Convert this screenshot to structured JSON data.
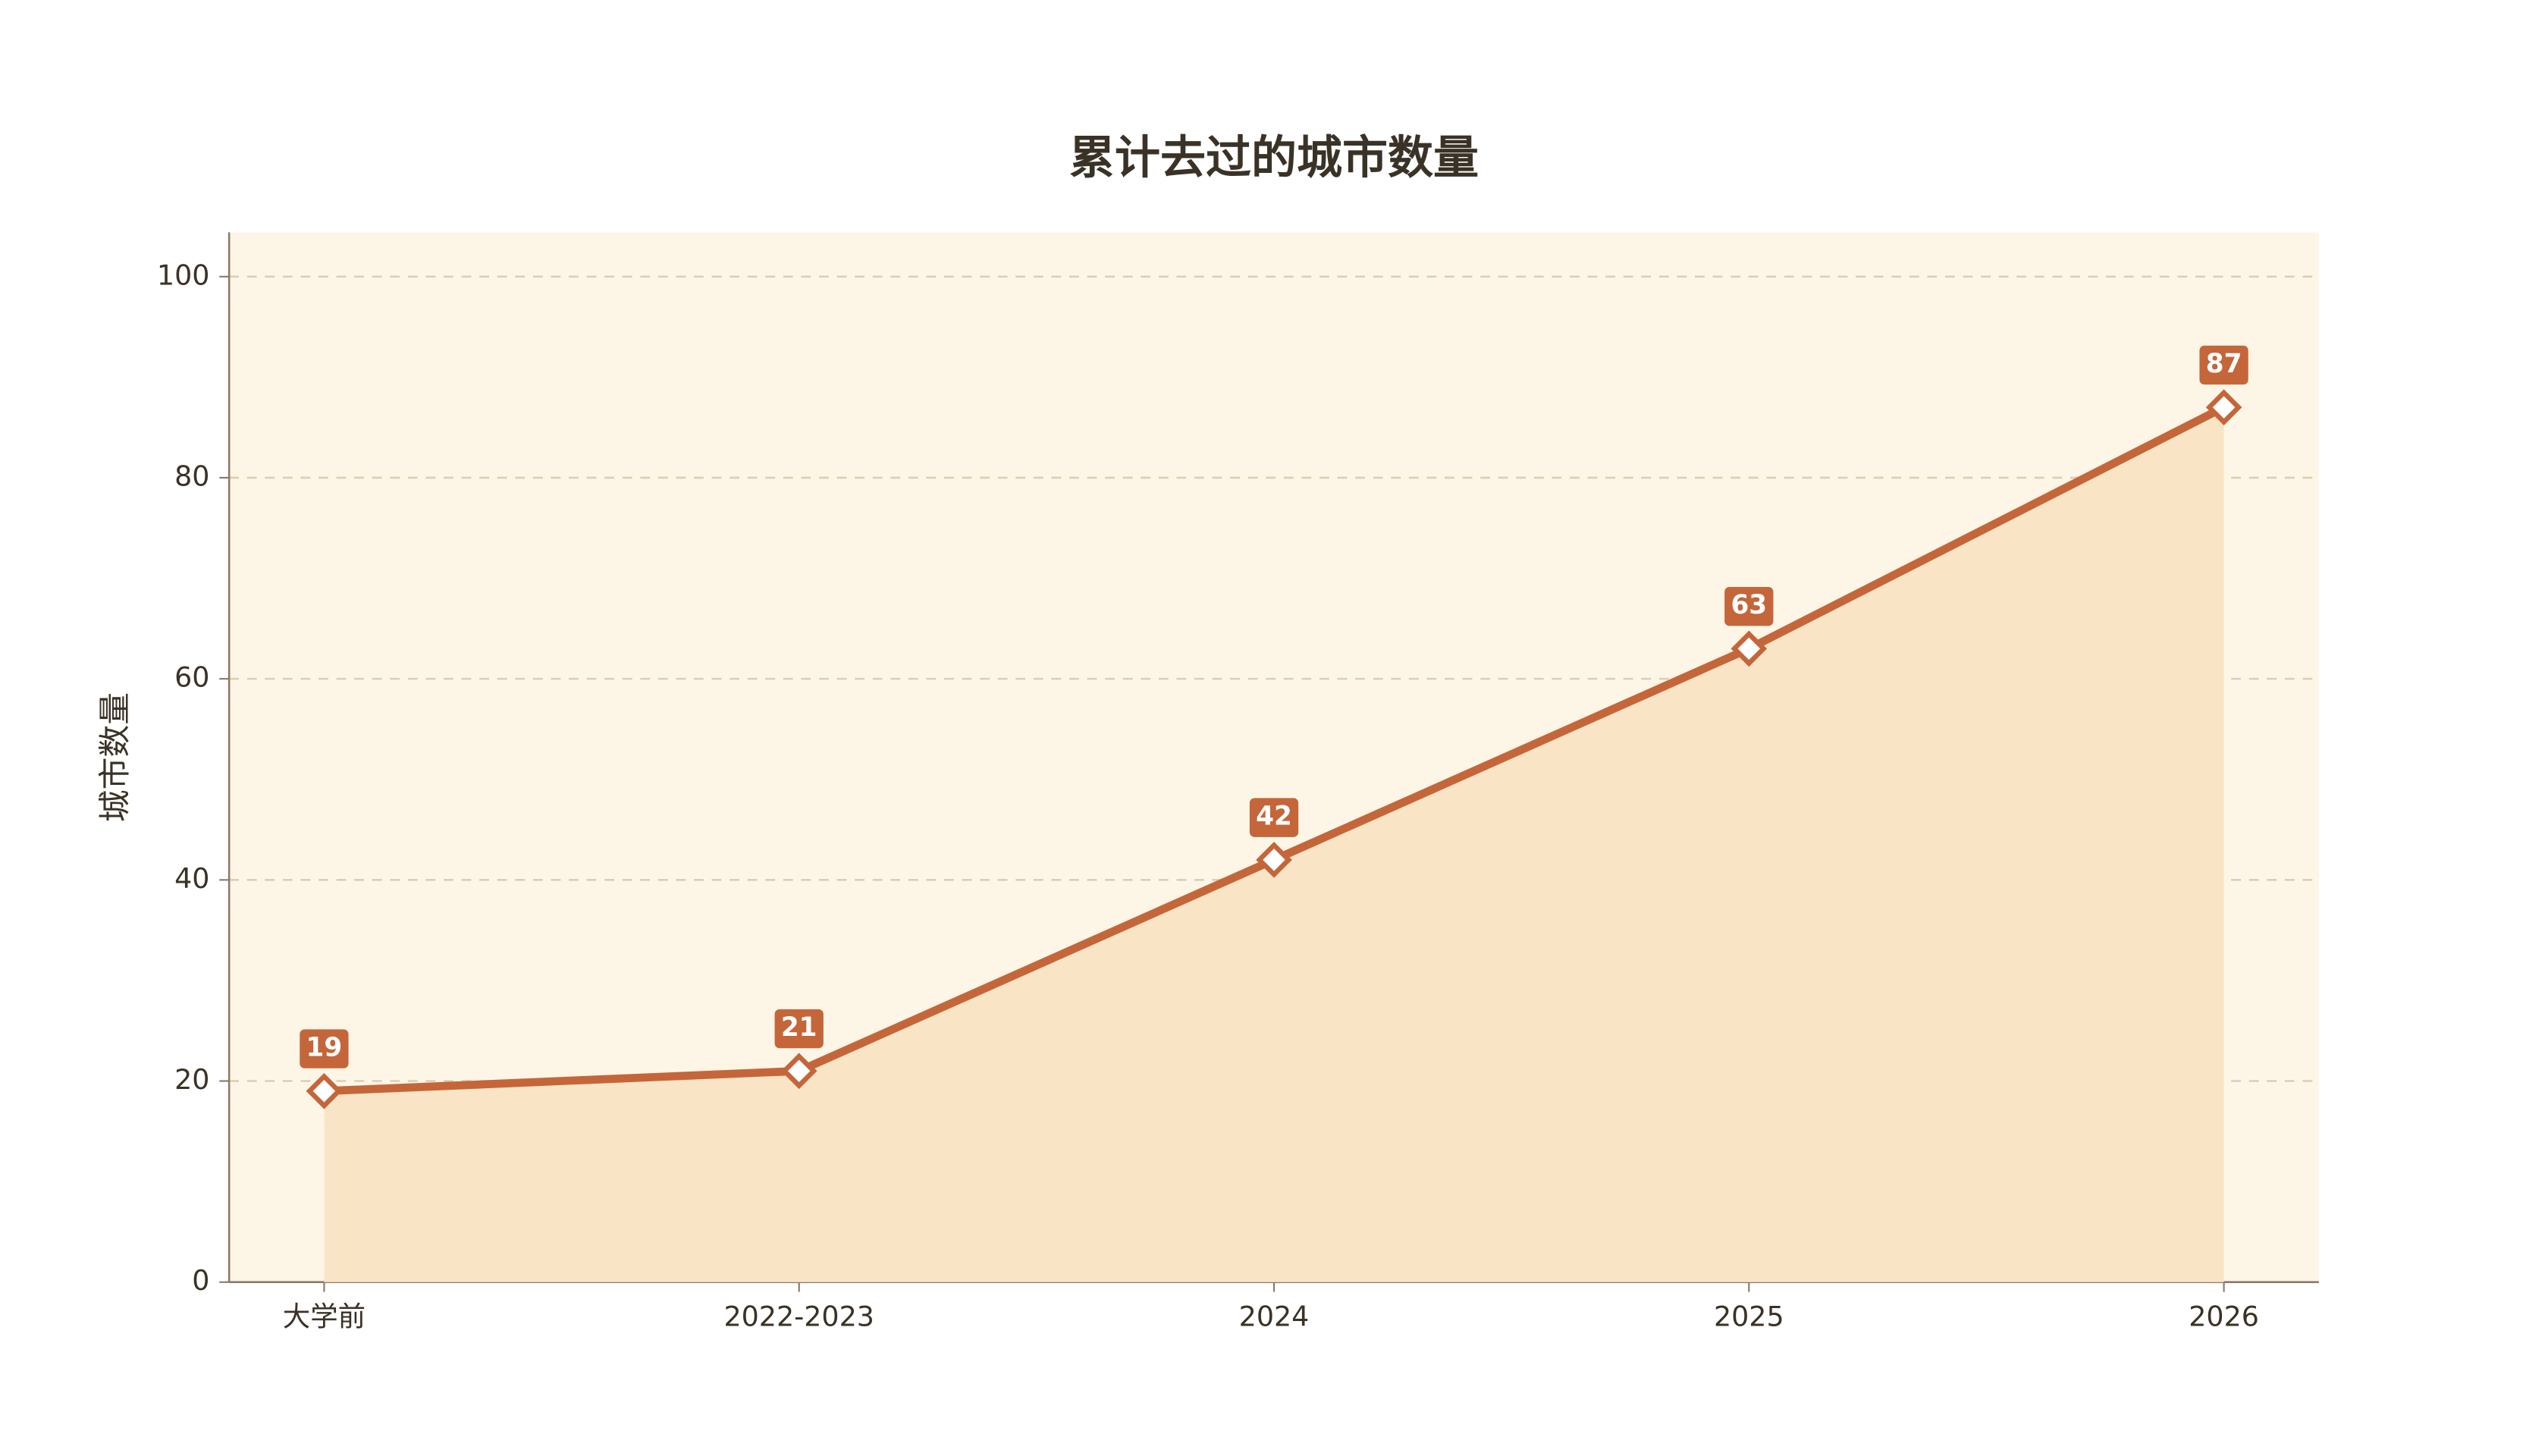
{
  "chart_data": {
    "type": "line",
    "title": "累计去过的城市数量",
    "y_label": "城市数量",
    "categories": [
      "大学前",
      "2022-2023",
      "2024",
      "2025",
      "2026"
    ],
    "series": [
      {
        "name": "累计去过的城市数量",
        "color": "#c4663a",
        "values": [
          19,
          21,
          42,
          63,
          87
        ]
      }
    ],
    "area_color": "#fae4c6",
    "background": "#fdf6e7",
    "ylim": [
      0,
      104.4
    ],
    "yticks": [
      0,
      20,
      40,
      60,
      80,
      100
    ],
    "grid": true,
    "data_labels": true
  }
}
